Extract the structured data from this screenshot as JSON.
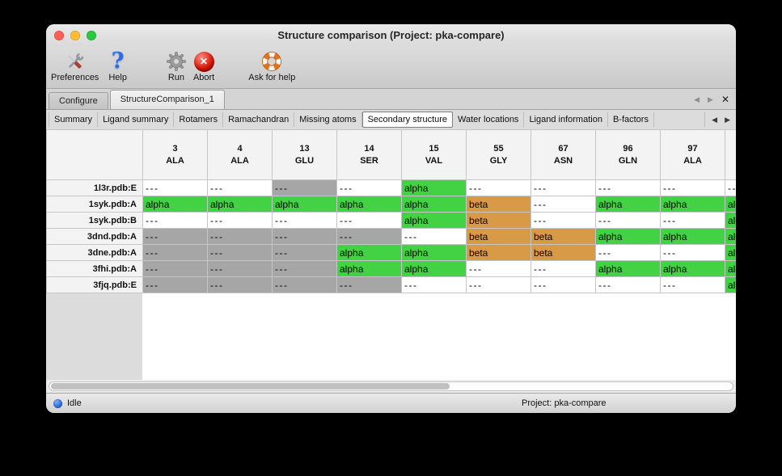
{
  "window": {
    "title": "Structure comparison (Project: pka-compare)"
  },
  "toolbar": {
    "items": [
      {
        "label": "Preferences",
        "icon": "tools-icon"
      },
      {
        "label": "Help",
        "icon": "question-mark-icon"
      },
      {
        "label": "Run",
        "icon": "gear-icon"
      },
      {
        "label": "Abort",
        "icon": "abort-cross-icon"
      },
      {
        "label": "Ask for help",
        "icon": "lifebuoy-icon"
      }
    ]
  },
  "main_tabs": {
    "items": [
      {
        "label": "Configure",
        "selected": false
      },
      {
        "label": "StructureComparison_1",
        "selected": true
      }
    ]
  },
  "sub_tabs": {
    "items": [
      {
        "label": "Summary",
        "selected": false
      },
      {
        "label": "Ligand summary",
        "selected": false
      },
      {
        "label": "Rotamers",
        "selected": false
      },
      {
        "label": "Ramachandran",
        "selected": false
      },
      {
        "label": "Missing atoms",
        "selected": false
      },
      {
        "label": "Secondary structure",
        "selected": true
      },
      {
        "label": "Water locations",
        "selected": false
      },
      {
        "label": "Ligand information",
        "selected": false
      },
      {
        "label": "B-factors",
        "selected": false
      }
    ]
  },
  "icons": {
    "tab_prev": "◀",
    "tab_next": "▶",
    "tab_close": "✕",
    "subtab_prev": "◀",
    "subtab_next": "▶",
    "help_glyph": "?",
    "abort_glyph": "✕"
  },
  "table": {
    "columns": [
      {
        "number": "3",
        "residue": "ALA"
      },
      {
        "number": "4",
        "residue": "ALA"
      },
      {
        "number": "13",
        "residue": "GLU"
      },
      {
        "number": "14",
        "residue": "SER"
      },
      {
        "number": "15",
        "residue": "VAL"
      },
      {
        "number": "55",
        "residue": "GLY"
      },
      {
        "number": "67",
        "residue": "ASN"
      },
      {
        "number": "96",
        "residue": "GLN"
      },
      {
        "number": "97",
        "residue": "ALA"
      },
      {
        "number": "",
        "residue": ""
      }
    ],
    "cell_types": {
      "-": {
        "text": "---",
        "bg": "#ffffff"
      },
      "-g": {
        "text": "---",
        "bg": "#a6a6a6"
      },
      "a": {
        "text": "alpha",
        "bg": "#43d243"
      },
      "b": {
        "text": "beta",
        "bg": "#d89a46"
      }
    },
    "rows": [
      {
        "name": "1l3r.pdb:E",
        "cells": [
          "-",
          "-",
          "-g",
          "-",
          "a",
          "-",
          "-",
          "-",
          "-",
          "-"
        ]
      },
      {
        "name": "1syk.pdb:A",
        "cells": [
          "a",
          "a",
          "a",
          "a",
          "a",
          "b",
          "-",
          "a",
          "a",
          "a"
        ]
      },
      {
        "name": "1syk.pdb:B",
        "cells": [
          "-",
          "-",
          "-",
          "-",
          "a",
          "b",
          "-",
          "-",
          "-",
          "a"
        ]
      },
      {
        "name": "3dnd.pdb:A",
        "cells": [
          "-g",
          "-g",
          "-g",
          "-g",
          "-",
          "b",
          "b",
          "a",
          "a",
          "a"
        ]
      },
      {
        "name": "3dne.pdb:A",
        "cells": [
          "-g",
          "-g",
          "-g",
          "a",
          "a",
          "b",
          "b",
          "-",
          "-",
          "a"
        ]
      },
      {
        "name": "3fhi.pdb:A",
        "cells": [
          "-g",
          "-g",
          "-g",
          "a",
          "a",
          "-",
          "-",
          "a",
          "a",
          "a"
        ]
      },
      {
        "name": "3fjq.pdb:E",
        "cells": [
          "-g",
          "-g",
          "-g",
          "-g",
          "-",
          "-",
          "-",
          "-",
          "-",
          "a"
        ]
      }
    ]
  },
  "statusbar": {
    "status": "Idle",
    "project": "Project: pka-compare"
  }
}
